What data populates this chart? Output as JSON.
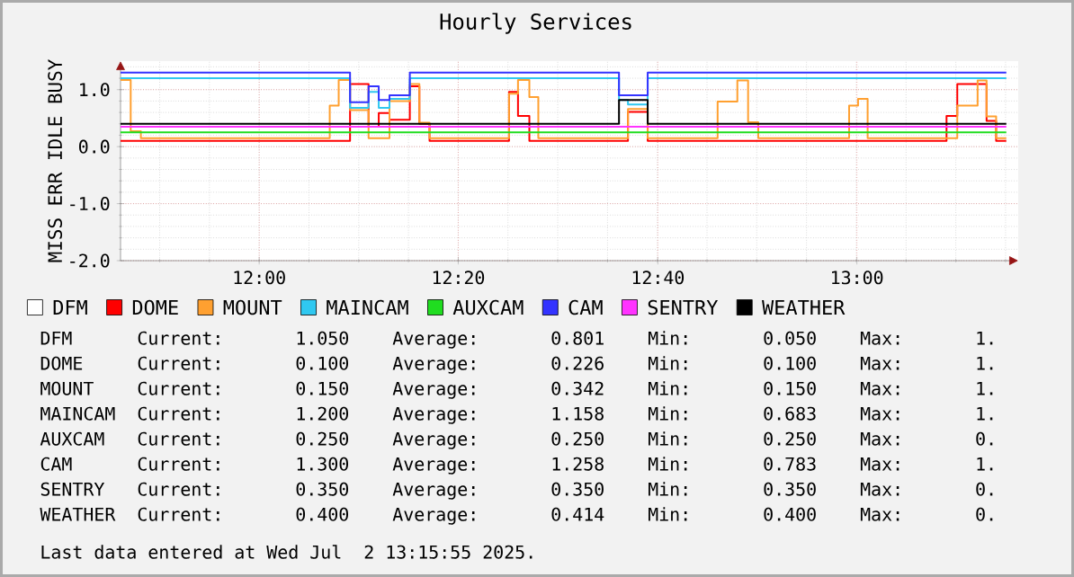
{
  "chart_data": {
    "type": "step",
    "title": "Hourly Services",
    "ylabel": "MISS ERR IDLE BUSY",
    "xlim": [
      11.768,
      13.27
    ],
    "ylim": [
      -2,
      1.5
    ],
    "xticks": [
      {
        "value": 12,
        "label": "12:00"
      },
      {
        "value": 12.333,
        "label": "12:20"
      },
      {
        "value": 12.667,
        "label": "12:40"
      },
      {
        "value": 13,
        "label": "13:00"
      }
    ],
    "yticks": [
      {
        "value": -2,
        "label": "-2.0"
      },
      {
        "value": -1,
        "label": "-1.0"
      },
      {
        "value": 0,
        "label": "0.0"
      },
      {
        "value": 1,
        "label": "1.0"
      }
    ],
    "grid": true,
    "legend": "bottom",
    "series": [
      {
        "name": "DFM",
        "color": "#ffffff"
      },
      {
        "name": "DOME",
        "color": "#ff0000",
        "x": [
          11.768,
          12.152,
          12.183,
          12.2,
          12.218,
          12.252,
          12.268,
          12.285,
          12.418,
          12.433,
          12.452,
          12.617,
          12.65,
          13.15,
          13.168,
          13.217,
          13.233,
          13.25
        ],
        "values": [
          0.1,
          1.1,
          0.35,
          0.59,
          0.47,
          1.06,
          0.4,
          0.1,
          0.96,
          0.54,
          0.1,
          0.61,
          0.1,
          0.54,
          1.1,
          0.45,
          0.1,
          0.1
        ]
      },
      {
        "name": "MOUNT",
        "color": "#ffa030",
        "x": [
          11.768,
          11.785,
          11.802,
          12.118,
          12.133,
          12.152,
          12.183,
          12.218,
          12.252,
          12.268,
          12.285,
          12.418,
          12.433,
          12.452,
          12.467,
          12.617,
          12.65,
          12.767,
          12.8,
          12.818,
          12.835,
          12.987,
          13.002,
          13.018,
          13.168,
          13.202,
          13.217,
          13.233,
          13.25
        ],
        "values": [
          1.17,
          0.27,
          0.15,
          0.72,
          1.17,
          0.64,
          0.15,
          0.8,
          1.1,
          0.42,
          0.15,
          0.93,
          1.17,
          0.87,
          0.15,
          0.66,
          0.15,
          0.79,
          1.16,
          0.43,
          0.15,
          0.72,
          0.84,
          0.15,
          0.72,
          1.16,
          0.53,
          0.15,
          0.15
        ]
      },
      {
        "name": "MAINCAM",
        "color": "#30c8f0",
        "x": [
          11.768,
          12.152,
          12.183,
          12.2,
          12.218,
          12.252,
          12.602,
          12.617,
          12.65,
          13.25
        ],
        "values": [
          1.2,
          0.68,
          0.96,
          0.68,
          0.84,
          1.2,
          0.82,
          0.74,
          1.2,
          1.2
        ]
      },
      {
        "name": "AUXCAM",
        "color": "#20dd20",
        "x": [
          11.768,
          13.25
        ],
        "values": [
          0.25,
          0.25
        ]
      },
      {
        "name": "CAM",
        "color": "#3333ff",
        "x": [
          11.768,
          12.152,
          12.183,
          12.2,
          12.218,
          12.252,
          12.602,
          12.65,
          13.25
        ],
        "values": [
          1.3,
          0.78,
          1.06,
          0.82,
          0.9,
          1.3,
          0.9,
          1.3,
          1.3
        ]
      },
      {
        "name": "SENTRY",
        "color": "#ff33ff",
        "x": [
          11.768,
          13.25
        ],
        "values": [
          0.35,
          0.35
        ]
      },
      {
        "name": "WEATHER",
        "color": "#000000",
        "x": [
          11.768,
          12.602,
          12.65,
          13.25
        ],
        "values": [
          0.4,
          0.82,
          0.4,
          0.4
        ]
      }
    ],
    "annotations": [
      "DFM      Current:     1.050    Average:     0.801    Min:     0.050    Max:     1.",
      "DOME     Current:     0.100    Average:     0.226    Min:     0.100    Max:     1.",
      "MOUNT    Current:     0.150    Average:     0.342    Min:     0.150    Max:     1.",
      "MAINCAM  Current:     1.200    Average:     1.158    Min:     0.683    Max:     1.",
      "AUXCAM   Current:     0.250    Average:     0.250    Min:     0.250    Max:     0.",
      "CAM      Current:     1.300    Average:     1.258    Min:     0.783    Max:     1.",
      "SENTRY   Current:     0.350    Average:     0.350    Min:     0.350    Max:     0.",
      "WEATHER  Current:     0.400    Average:     0.414    Min:     0.400    Max:     0.",
      "Last data entered at Wed Jul  2 13:15:55 2025."
    ]
  }
}
